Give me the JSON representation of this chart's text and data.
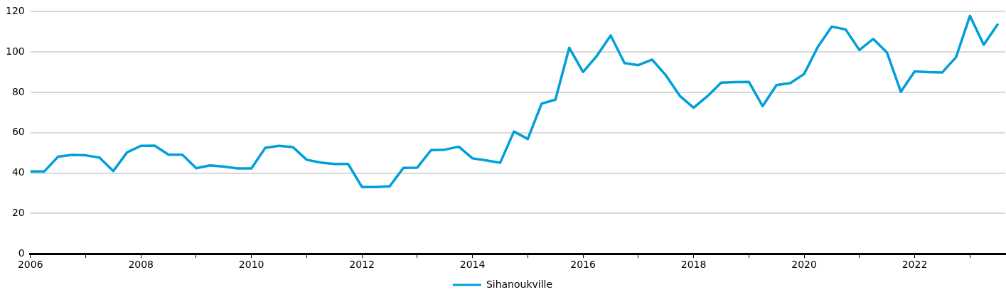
{
  "chart_data": {
    "type": "line",
    "x": [
      2006,
      2006.25,
      2006.5,
      2006.75,
      2007,
      2007.25,
      2007.5,
      2007.75,
      2008,
      2008.25,
      2008.5,
      2008.75,
      2009,
      2009.25,
      2009.5,
      2009.75,
      2010,
      2010.25,
      2010.5,
      2010.75,
      2011,
      2011.25,
      2011.5,
      2011.75,
      2012,
      2012.25,
      2012.5,
      2012.75,
      2013,
      2013.25,
      2013.5,
      2013.75,
      2014,
      2014.25,
      2014.5,
      2014.75,
      2015,
      2015.25,
      2015.5,
      2015.75,
      2016,
      2016.25,
      2016.5,
      2016.75,
      2017,
      2017.25,
      2017.5,
      2017.75,
      2018,
      2018.25,
      2018.5,
      2018.75,
      2019,
      2019.25,
      2019.5,
      2019.75,
      2020,
      2020.25,
      2020.5,
      2020.75,
      2021,
      2021.25,
      2021.5,
      2021.75,
      2022,
      2022.25,
      2022.5,
      2022.75,
      2023,
      2023.25,
      2023.5
    ],
    "series": [
      {
        "name": "Sihanoukville",
        "color": "#009fda",
        "values": [
          40.8,
          40.8,
          48.1,
          49,
          48.8,
          47.7,
          41,
          50.3,
          53.5,
          53.6,
          49.1,
          49.1,
          42.4,
          43.8,
          43.2,
          42.3,
          42.3,
          52.5,
          53.5,
          52.9,
          46.6,
          45.2,
          44.5,
          44.5,
          33.1,
          33.1,
          33.4,
          42.6,
          42.7,
          51.4,
          51.6,
          53.1,
          47.3,
          46.3,
          45.1,
          60.6,
          56.9,
          74.4,
          76.4,
          102.1,
          90.1,
          98.1,
          108.2,
          94.5,
          93.5,
          96.2,
          88.4,
          78.3,
          72.4,
          78.1,
          84.8,
          85.1,
          85.2,
          73.2,
          83.6,
          84.6,
          89.1,
          102.6,
          112.6,
          111.2,
          101,
          106.5,
          99.7,
          80.3,
          90.4,
          90,
          89.9,
          97.5,
          117.9,
          103.6,
          113.6
        ]
      }
    ],
    "xlim": [
      2006,
      2023.64
    ],
    "xticks": [
      2006,
      {
        "value": 2007,
        "label": null
      },
      2008,
      {
        "value": 2009,
        "label": null
      },
      2010,
      {
        "value": 2011,
        "label": null
      },
      2012,
      {
        "value": 2013,
        "label": null
      },
      2014,
      {
        "value": 2015,
        "label": null
      },
      2016,
      {
        "value": 2017,
        "label": null
      },
      2018,
      {
        "value": 2019,
        "label": null
      },
      2020,
      {
        "value": 2021,
        "label": null
      },
      2022,
      {
        "value": 2023,
        "label": null
      }
    ],
    "ylim": [
      0,
      120
    ],
    "yticks": [
      0,
      20,
      40,
      60,
      80,
      100,
      120
    ],
    "grid": "y",
    "legend": "bottom",
    "marker": "none",
    "line_style": "solid"
  }
}
